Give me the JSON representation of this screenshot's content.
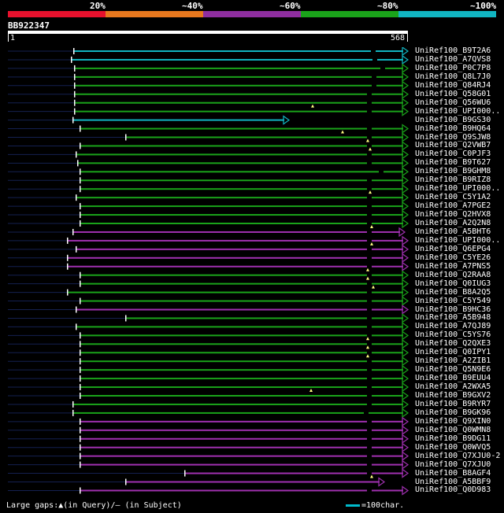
{
  "legend": {
    "segments": [
      {
        "color": "#e8112d"
      },
      {
        "color": "#e8781e"
      },
      {
        "color": "#8f2ea0"
      },
      {
        "color": "#1aa31a"
      },
      {
        "color": "#11b5c2"
      }
    ],
    "labels": [
      "20%",
      "~40%",
      "~60%",
      "~80%",
      "~100%"
    ]
  },
  "query": {
    "id": "BB922347",
    "start": "1",
    "end": "568"
  },
  "colors": {
    "green": "#1aa31a",
    "purple": "#a030b0",
    "cyan": "#11b5c2",
    "navy": "#142050",
    "gap_marker": "#ffff80"
  },
  "hits": [
    {
      "label": "UniRef100_B9T2A6",
      "color": "cyan",
      "start": 93,
      "end": 518,
      "marks": [
        471
      ]
    },
    {
      "label": "UniRef100_A7QVS8",
      "color": "cyan",
      "start": 90,
      "end": 518,
      "marks": [
        473
      ]
    },
    {
      "label": "UniRef100_P0C7P8",
      "color": "green",
      "start": 94,
      "end": 518,
      "marks": [
        483
      ]
    },
    {
      "label": "UniRef100_Q8L7J0",
      "color": "green",
      "start": 94,
      "end": 518,
      "marks": [
        472
      ]
    },
    {
      "label": "UniRef100_Q84RJ4",
      "color": "green",
      "start": 94,
      "end": 518,
      "marks": [
        472
      ]
    },
    {
      "label": "UniRef100_Q58G01",
      "color": "green",
      "start": 94,
      "end": 518,
      "marks": [
        466
      ]
    },
    {
      "label": "UniRef100_Q56WU6",
      "color": "green",
      "start": 94,
      "end": 518,
      "marks": [
        466
      ]
    },
    {
      "label": "UniRef100_UPI000..",
      "color": "green",
      "start": 94,
      "end": 518,
      "marks": [
        466
      ],
      "gap": 397
    },
    {
      "label": "UniRef100_B9GS30",
      "color": "cyan",
      "start": 92,
      "end": 367,
      "marks": []
    },
    {
      "label": "UniRef100_B9HQ64",
      "color": "green",
      "start": 101,
      "end": 518,
      "marks": [
        466
      ]
    },
    {
      "label": "UniRef100_Q9SJW8",
      "color": "green",
      "start": 159,
      "end": 518,
      "marks": [
        466
      ],
      "gap": 435
    },
    {
      "label": "UniRef100_Q2VWB7",
      "color": "green",
      "start": 101,
      "end": 518,
      "marks": [
        466
      ],
      "gap": 467
    },
    {
      "label": "UniRef100_C0PJF3",
      "color": "green",
      "start": 96,
      "end": 518,
      "marks": [
        466
      ],
      "gap": 470
    },
    {
      "label": "UniRef100_B9T627",
      "color": "green",
      "start": 98,
      "end": 518,
      "marks": [
        466
      ]
    },
    {
      "label": "UniRef100_B9GHM8",
      "color": "green",
      "start": 101,
      "end": 518,
      "marks": [
        481
      ]
    },
    {
      "label": "UniRef100_B9RIZ8",
      "color": "green",
      "start": 101,
      "end": 518,
      "marks": [
        466
      ]
    },
    {
      "label": "UniRef100_UPI000..",
      "color": "green",
      "start": 101,
      "end": 518,
      "marks": [
        466
      ]
    },
    {
      "label": "UniRef100_C5Y1A2",
      "color": "green",
      "start": 96,
      "end": 518,
      "marks": [
        466
      ],
      "gap": 470
    },
    {
      "label": "UniRef100_A7PGE2",
      "color": "green",
      "start": 101,
      "end": 518,
      "marks": [
        466
      ]
    },
    {
      "label": "UniRef100_Q2HVX8",
      "color": "green",
      "start": 101,
      "end": 518,
      "marks": [
        466
      ]
    },
    {
      "label": "UniRef100_A2Q2N8",
      "color": "green",
      "start": 101,
      "end": 518,
      "marks": [
        466
      ]
    },
    {
      "label": "UniRef100_A5BHT6",
      "color": "purple",
      "start": 92,
      "end": 514,
      "marks": [
        466
      ],
      "gap": 472
    },
    {
      "label": "UniRef100_UPI000..",
      "color": "purple",
      "start": 85,
      "end": 518,
      "marks": [
        466
      ]
    },
    {
      "label": "UniRef100_Q6EPG4",
      "color": "purple",
      "start": 96,
      "end": 518,
      "marks": [
        466
      ],
      "gap": 472
    },
    {
      "label": "UniRef100_C5YE26",
      "color": "purple",
      "start": 85,
      "end": 518,
      "marks": [
        466
      ]
    },
    {
      "label": "UniRef100_A7PNS5",
      "color": "purple",
      "start": 85,
      "end": 518,
      "marks": [
        466
      ]
    },
    {
      "label": "UniRef100_Q2RAA8",
      "color": "green",
      "start": 101,
      "end": 518,
      "marks": [
        466
      ],
      "gap": 467
    },
    {
      "label": "UniRef100_Q0IUG3",
      "color": "green",
      "start": 101,
      "end": 518,
      "marks": [
        466
      ],
      "gap": 467
    },
    {
      "label": "UniRef100_B8A2Q5",
      "color": "green",
      "start": 85,
      "end": 518,
      "marks": [
        466
      ],
      "gap": 474
    },
    {
      "label": "UniRef100_C5Y549",
      "color": "green",
      "start": 101,
      "end": 518,
      "marks": [
        466
      ]
    },
    {
      "label": "UniRef100_B9HC36",
      "color": "purple",
      "start": 96,
      "end": 518,
      "marks": [
        466
      ]
    },
    {
      "label": "UniRef100_A5B948",
      "color": "green",
      "start": 159,
      "end": 518,
      "marks": [
        466
      ]
    },
    {
      "label": "UniRef100_A7QJ89",
      "color": "green",
      "start": 96,
      "end": 518,
      "marks": [
        466
      ]
    },
    {
      "label": "UniRef100_C5YS76",
      "color": "green",
      "start": 101,
      "end": 518,
      "marks": [
        466
      ]
    },
    {
      "label": "UniRef100_Q2QXE3",
      "color": "green",
      "start": 101,
      "end": 518,
      "marks": [
        466
      ],
      "gap": 467
    },
    {
      "label": "UniRef100_Q0IPY1",
      "color": "green",
      "start": 101,
      "end": 518,
      "marks": [
        466
      ],
      "gap": 467
    },
    {
      "label": "UniRef100_A2ZIB1",
      "color": "green",
      "start": 101,
      "end": 518,
      "marks": [
        466
      ],
      "gap": 467
    },
    {
      "label": "UniRef100_Q5N9E6",
      "color": "green",
      "start": 101,
      "end": 518,
      "marks": [
        466
      ]
    },
    {
      "label": "UniRef100_B9EUU4",
      "color": "green",
      "start": 101,
      "end": 518,
      "marks": [
        466
      ]
    },
    {
      "label": "UniRef100_A2WXA5",
      "color": "green",
      "start": 101,
      "end": 518,
      "marks": [
        466
      ]
    },
    {
      "label": "UniRef100_B9GXV2",
      "color": "green",
      "start": 101,
      "end": 518,
      "marks": [
        466
      ],
      "gap": 395
    },
    {
      "label": "UniRef100_B9RYR7",
      "color": "green",
      "start": 92,
      "end": 518,
      "marks": [
        466
      ]
    },
    {
      "label": "UniRef100_B9GK96",
      "color": "green",
      "start": 92,
      "end": 518,
      "marks": [
        462
      ]
    },
    {
      "label": "UniRef100_Q9XIN0",
      "color": "purple",
      "start": 101,
      "end": 518,
      "marks": [
        466
      ]
    },
    {
      "label": "UniRef100_Q0WMN8",
      "color": "purple",
      "start": 101,
      "end": 518,
      "marks": [
        466
      ]
    },
    {
      "label": "UniRef100_B9DG11",
      "color": "purple",
      "start": 101,
      "end": 518,
      "marks": [
        466
      ]
    },
    {
      "label": "UniRef100_Q0WVQ5",
      "color": "purple",
      "start": 101,
      "end": 518,
      "marks": [
        466
      ]
    },
    {
      "label": "UniRef100_Q7XJU0-2",
      "color": "purple",
      "start": 101,
      "end": 518,
      "marks": [
        466
      ]
    },
    {
      "label": "UniRef100_Q7XJU0",
      "color": "purple",
      "start": 101,
      "end": 518,
      "marks": [
        466
      ]
    },
    {
      "label": "UniRef100_B8AGF4",
      "color": "purple",
      "start": 234,
      "end": 518,
      "marks": [
        466
      ]
    },
    {
      "label": "UniRef100_A5BBF9",
      "color": "purple",
      "start": 159,
      "end": 488,
      "marks": [],
      "gap": 472
    },
    {
      "label": "UniRef100_Q0D983",
      "color": "purple",
      "start": 101,
      "end": 518,
      "marks": [
        466
      ]
    }
  ],
  "footer": {
    "gaps": "Large gaps:▲(in Query)/– (in Subject)",
    "scale": "=100char."
  }
}
